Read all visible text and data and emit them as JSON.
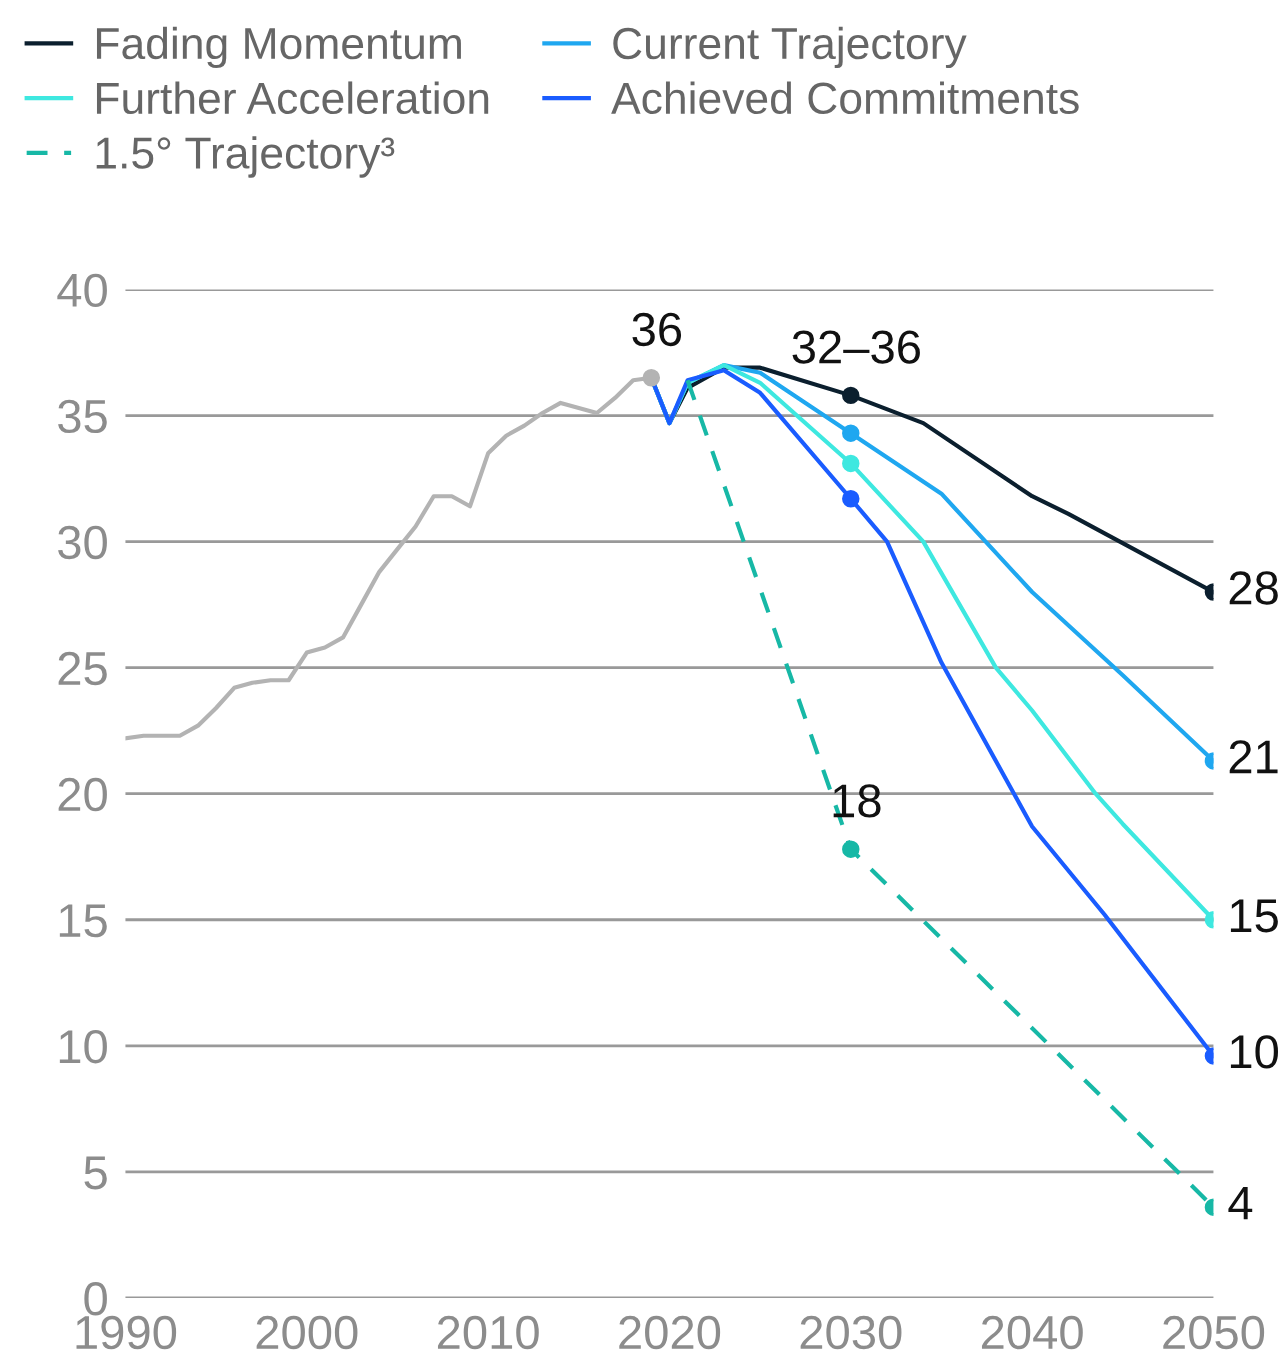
{
  "chart_data": {
    "type": "line",
    "xlim": [
      1990,
      2050
    ],
    "ylim": [
      0,
      40
    ],
    "xticks": [
      1990,
      2000,
      2010,
      2020,
      2030,
      2040,
      2050
    ],
    "yticks": [
      0,
      5,
      10,
      15,
      20,
      25,
      30,
      35,
      40
    ],
    "grid": "y",
    "legend": "top left",
    "series": [
      {
        "color": "#b3b3b3",
        "x": [
          1990,
          1991,
          1992,
          1993,
          1994,
          1995,
          1996,
          1997,
          1998,
          1999,
          2000,
          2001,
          2002,
          2003,
          2004,
          2005,
          2006,
          2007,
          2008,
          2009,
          2010,
          2011,
          2012,
          2013,
          2014,
          2015,
          2016,
          2017,
          2018,
          2019
        ],
        "values": [
          22.2,
          22.3,
          22.3,
          22.3,
          22.7,
          23.4,
          24.2,
          24.4,
          24.5,
          24.5,
          25.6,
          25.8,
          26.2,
          27.5,
          28.8,
          29.7,
          30.6,
          31.8,
          31.8,
          31.4,
          33.5,
          34.2,
          34.6,
          35.1,
          35.5,
          35.3,
          35.1,
          35.7,
          36.4,
          36.5
        ]
      },
      {
        "name": "Fading Momentum",
        "color": "#0b1f2e",
        "x": [
          2019,
          2020,
          2021,
          2023,
          2025,
          2030,
          2034,
          2040,
          2042,
          2050
        ],
        "values": [
          36.5,
          34.7,
          36.1,
          36.9,
          36.9,
          35.8,
          34.7,
          31.8,
          31.1,
          28.0
        ]
      },
      {
        "name": "Current Trajectory",
        "color": "#1fa7f0",
        "x": [
          2019,
          2020,
          2021,
          2023,
          2025,
          2030,
          2035,
          2040,
          2045,
          2050
        ],
        "values": [
          36.5,
          34.7,
          36.3,
          37.0,
          36.7,
          34.3,
          31.9,
          28.0,
          24.7,
          21.3
        ]
      },
      {
        "name": "Further Acceleration",
        "color": "#3ee8e0",
        "x": [
          2019,
          2020,
          2021,
          2023,
          2025,
          2030,
          2034,
          2038,
          2040,
          2043.5,
          2045,
          2050
        ],
        "values": [
          36.5,
          34.7,
          36.3,
          37.0,
          36.3,
          33.1,
          30.0,
          25.0,
          23.3,
          20.0,
          18.8,
          15.0
        ]
      },
      {
        "name": "Achieved Commitments",
        "color": "#1a5cff",
        "x": [
          2019,
          2020,
          2021,
          2023,
          2025,
          2030,
          2032,
          2035,
          2040,
          2044,
          2050
        ],
        "values": [
          36.5,
          34.7,
          36.4,
          36.8,
          35.9,
          31.7,
          30.0,
          25.2,
          18.7,
          15.2,
          9.6
        ]
      },
      {
        "name": "1.5° Trajectory³",
        "color": "#17b8a6",
        "line_style": "dashed",
        "x": [
          2021,
          2030,
          2050
        ],
        "values": [
          36.4,
          17.8,
          3.6
        ]
      },
      {
        "type": "scatter",
        "marker": "circle",
        "color": "#b3b3b3",
        "x": [
          2019
        ],
        "values": [
          36.5
        ]
      },
      {
        "type": "scatter",
        "marker": "circle",
        "color": "#0b1f2e",
        "x": [
          2030,
          2050
        ],
        "values": [
          35.8,
          28.0
        ]
      },
      {
        "type": "scatter",
        "marker": "circle",
        "color": "#1fa7f0",
        "x": [
          2030,
          2050
        ],
        "values": [
          34.3,
          21.3
        ]
      },
      {
        "type": "scatter",
        "marker": "circle",
        "color": "#3ee8e0",
        "x": [
          2030,
          2050
        ],
        "values": [
          33.1,
          15.0
        ]
      },
      {
        "type": "scatter",
        "marker": "circle",
        "color": "#1a5cff",
        "x": [
          2030,
          2050
        ],
        "values": [
          31.7,
          9.6
        ]
      },
      {
        "type": "scatter",
        "marker": "circle",
        "color": "#17b8a6",
        "x": [
          2030,
          2050
        ],
        "values": [
          17.8,
          3.6
        ]
      }
    ],
    "annotations": [
      {
        "text": "36",
        "x": 2019,
        "y": 36.5
      },
      {
        "text": "32–36",
        "x": 2030,
        "y": 35.8
      },
      {
        "text": "18",
        "x": 2030,
        "y": 17.8
      },
      {
        "text": "28",
        "x": 2050,
        "y": 28.0
      },
      {
        "text": "21",
        "x": 2050,
        "y": 21.3
      },
      {
        "text": "15",
        "x": 2050,
        "y": 15.0
      },
      {
        "text": "10",
        "x": 2050,
        "y": 9.6
      },
      {
        "text": "4",
        "x": 2050,
        "y": 3.6
      }
    ]
  }
}
